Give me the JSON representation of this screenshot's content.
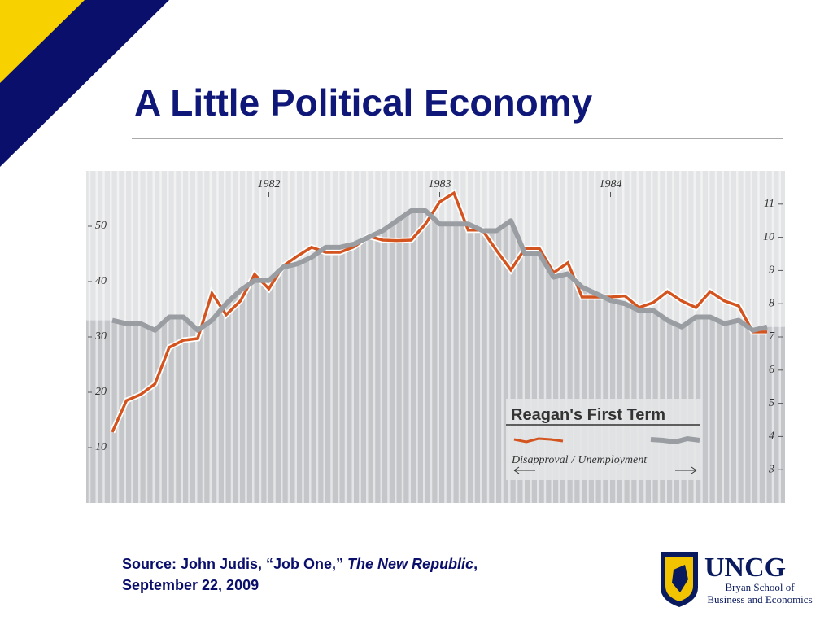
{
  "slide": {
    "title": "A Little Political Economy",
    "source": {
      "prefix": "Source:  John Judis, “Job One,” ",
      "publication": "The New Republic",
      "suffix": ",",
      "date": "September 22, 2009"
    },
    "logo": {
      "name": "UNCG",
      "line1": "Bryan School of",
      "line2": "Business and Economics"
    }
  },
  "chart_data": {
    "type": "line",
    "legend_title": "Reagan's First Term",
    "legend_separator": "/",
    "categories": [
      null,
      null,
      null,
      null,
      null,
      null,
      null,
      null,
      null,
      null,
      null,
      "1982",
      null,
      null,
      null,
      null,
      null,
      null,
      null,
      null,
      null,
      null,
      null,
      "1983",
      null,
      null,
      null,
      null,
      null,
      null,
      null,
      null,
      null,
      null,
      null,
      "1984",
      null,
      null,
      null,
      null,
      null,
      null,
      null,
      null,
      null,
      null,
      null
    ],
    "ylim": [
      0,
      60
    ],
    "yticks": [
      10,
      20,
      30,
      40,
      50
    ],
    "y2lim": [
      2,
      12
    ],
    "y2ticks": [
      3,
      4,
      5,
      6,
      7,
      8,
      9,
      10,
      11
    ],
    "series": [
      {
        "name": "Disapproval",
        "color": "#d4541f",
        "values": [
          12.8,
          18.5,
          19.6,
          21.5,
          28.1,
          29.4,
          29.7,
          37.9,
          34.0,
          36.5,
          41.3,
          38.7,
          42.8,
          44.6,
          46.2,
          45.3,
          45.3,
          46.3,
          48.2,
          47.5,
          47.4,
          47.5,
          50.4,
          54.4,
          56.0,
          49.3,
          49.3,
          45.6,
          42.1,
          46.0,
          46.0,
          41.6,
          43.4,
          37.2,
          37.2,
          37.2,
          37.4,
          35.3,
          36.2,
          38.2,
          36.5,
          35.3,
          38.2,
          36.5,
          35.6,
          30.9,
          30.9
        ]
      },
      {
        "name": "Unemployment",
        "color": "#9a9da2",
        "axis": "y2",
        "values": [
          7.5,
          7.4,
          7.4,
          7.2,
          7.6,
          7.6,
          7.2,
          7.5,
          8.0,
          8.4,
          8.7,
          8.7,
          9.1,
          9.2,
          9.4,
          9.7,
          9.7,
          9.8,
          10.0,
          10.2,
          10.5,
          10.8,
          10.8,
          10.4,
          10.4,
          10.4,
          10.2,
          10.2,
          10.5,
          9.5,
          9.5,
          8.8,
          8.9,
          8.5,
          8.3,
          8.1,
          8.0,
          7.8,
          7.8,
          7.5,
          7.3,
          7.6,
          7.6,
          7.4,
          7.5,
          7.2,
          7.3
        ]
      }
    ]
  }
}
